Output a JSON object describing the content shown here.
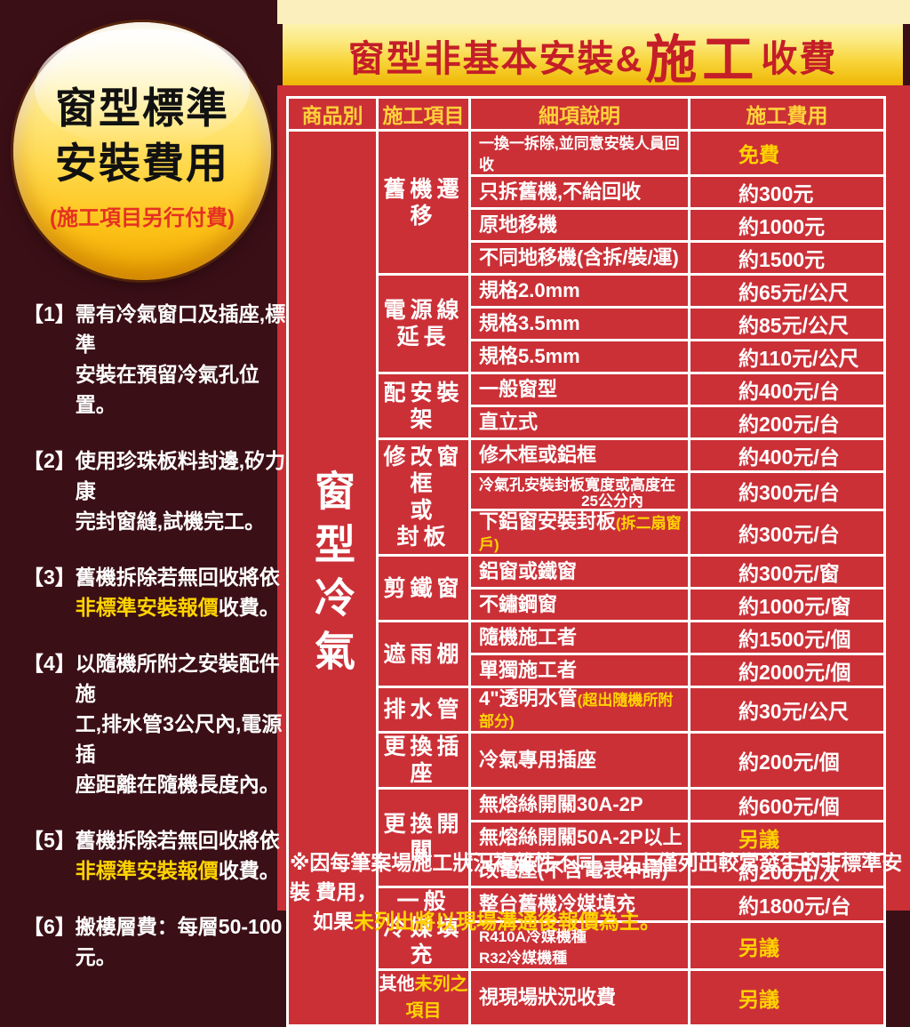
{
  "colors": {
    "background_maroon": "#3b0f16",
    "panel_red": "#cb3037",
    "highlight_yellow": "#ffd400",
    "header_yellow": "#ffd23a",
    "banner_text_red": "#c41e28",
    "badge_note_red": "#e53122"
  },
  "badge": {
    "line1": "窗型標準",
    "line2": "安裝費用",
    "note": "(施工項目另行付費)"
  },
  "notes": [
    {
      "num": "【1】",
      "parts": [
        {
          "t": "需有冷氣窗口及插座,標準"
        },
        {
          "br": true
        },
        {
          "t": "安裝在預留冷氣孔位置。"
        }
      ]
    },
    {
      "num": "【2】",
      "parts": [
        {
          "t": "使用珍珠板料封邊,矽力康"
        },
        {
          "br": true
        },
        {
          "t": "完封窗縫,試機完工。"
        }
      ]
    },
    {
      "num": "【3】",
      "parts": [
        {
          "t": "舊機拆除若無回收將依"
        },
        {
          "br": true
        },
        {
          "t": "非標準安裝報價",
          "y": true
        },
        {
          "t": "收費。"
        }
      ]
    },
    {
      "num": "【4】",
      "parts": [
        {
          "t": "以隨機所附之安裝配件施"
        },
        {
          "br": true
        },
        {
          "t": "工,排水管3公尺內,電源插"
        },
        {
          "br": true
        },
        {
          "t": "座距離在隨機長度內。"
        }
      ]
    },
    {
      "num": "【5】",
      "parts": [
        {
          "t": "舊機拆除若無回收將依"
        },
        {
          "br": true
        },
        {
          "t": "非標準安裝報價",
          "y": true
        },
        {
          "t": "收費。"
        }
      ]
    },
    {
      "num": "【6】",
      "parts": [
        {
          "t": "搬樓層費：每層50-100元。"
        }
      ]
    }
  ],
  "banner": {
    "left": "窗型非基本安裝&",
    "big": "施工",
    "right": "收費"
  },
  "table": {
    "headers": [
      "商品別",
      "施工項目",
      "細項說明",
      "施工費用"
    ],
    "product": "窗型冷氣",
    "sections": [
      {
        "label": [
          [
            {
              "t": "舊機遷移"
            }
          ]
        ],
        "rows": [
          {
            "detail": [
              {
                "t": "一換一拆除,並同意安裝人員回收",
                "sm": true
              }
            ],
            "fee": "免費",
            "hl": true
          },
          {
            "detail": [
              {
                "t": "只拆舊機,不給回收"
              }
            ],
            "fee": "約300元"
          },
          {
            "detail": [
              {
                "t": "原地移機"
              }
            ],
            "fee": "約1000元"
          },
          {
            "detail": [
              {
                "t": "不同地移機(含拆/裝/運)"
              }
            ],
            "fee": "約1500元"
          }
        ]
      },
      {
        "label": [
          [
            {
              "t": "電源線"
            }
          ],
          [
            {
              "t": "延長"
            }
          ]
        ],
        "rows": [
          {
            "detail": [
              {
                "t": "規格2.0mm"
              }
            ],
            "fee": "約65元/公尺"
          },
          {
            "detail": [
              {
                "t": "規格3.5mm"
              }
            ],
            "fee": "約85元/公尺"
          },
          {
            "detail": [
              {
                "t": "規格5.5mm"
              }
            ],
            "fee": "約110元/公尺"
          }
        ]
      },
      {
        "label": [
          [
            {
              "t": "配安裝架"
            }
          ]
        ],
        "rows": [
          {
            "detail": [
              {
                "t": "一般窗型"
              }
            ],
            "fee": "約400元/台"
          },
          {
            "detail": [
              {
                "t": "直立式"
              }
            ],
            "fee": "約200元/台"
          }
        ]
      },
      {
        "label": [
          [
            {
              "t": "修改窗框"
            }
          ],
          [
            {
              "t": "或"
            }
          ],
          [
            {
              "t": "封板"
            }
          ]
        ],
        "rows": [
          {
            "detail": [
              {
                "t": "修木框或鋁框"
              }
            ],
            "fee": "約400元/台"
          },
          {
            "detail": [
              {
                "t": "冷氣孔安裝封板寬度或高度在",
                "sm": true
              },
              {
                "t": "25公分內",
                "sm": true,
                "shift": true
              }
            ],
            "fee": "約300元/台"
          },
          {
            "detail": [
              {
                "t": "下鋁窗安裝封板"
              },
              {
                "t": "(拆二扇窗戶)",
                "y": true,
                "sm": true
              }
            ],
            "fee": "約300元/台"
          }
        ]
      },
      {
        "label": [
          [
            {
              "t": "剪鐵窗"
            }
          ]
        ],
        "rows": [
          {
            "detail": [
              {
                "t": "鋁窗或鐵窗"
              }
            ],
            "fee": "約300元/窗"
          },
          {
            "detail": [
              {
                "t": "不鏽鋼窗"
              }
            ],
            "fee": "約1000元/窗"
          }
        ]
      },
      {
        "label": [
          [
            {
              "t": "遮雨棚"
            }
          ]
        ],
        "rows": [
          {
            "detail": [
              {
                "t": "隨機施工者"
              }
            ],
            "fee": "約1500元/個"
          },
          {
            "detail": [
              {
                "t": "單獨施工者"
              }
            ],
            "fee": "約2000元/個"
          }
        ]
      },
      {
        "label": [
          [
            {
              "t": "排水管"
            }
          ]
        ],
        "rows": [
          {
            "detail": [
              {
                "t": "4\"透明水管"
              },
              {
                "t": "(超出隨機所附部分)",
                "y": true,
                "sm": true
              }
            ],
            "fee": "約30元/公尺"
          }
        ]
      },
      {
        "label": [
          [
            {
              "t": "更換插座"
            }
          ]
        ],
        "rows": [
          {
            "detail": [
              {
                "t": "冷氣專用插座"
              }
            ],
            "fee": "約200元/個"
          }
        ]
      },
      {
        "label": [
          [
            {
              "t": "更換開關"
            }
          ]
        ],
        "rows": [
          {
            "detail": [
              {
                "t": "無熔絲開關30A-2P"
              }
            ],
            "fee": "約600元/個"
          },
          {
            "detail": [
              {
                "t": "無熔絲開關50A-2P以上"
              }
            ],
            "fee": "另議",
            "hl": true
          },
          {
            "detail": [
              {
                "t": "改電壓(不含電表申請)"
              }
            ],
            "fee": "約200元/次"
          }
        ]
      },
      {
        "label": [
          [
            {
              "t": "一般"
            }
          ],
          [
            {
              "t": "冷媒填充"
            }
          ]
        ],
        "rows": [
          {
            "detail": [
              {
                "t": "整台舊機冷媒填充"
              }
            ],
            "fee": "約1800元/台"
          },
          {
            "detail": [
              {
                "t": "R410A冷媒機種",
                "sm": true
              },
              {
                "br": true
              },
              {
                "t": "R32冷媒機種",
                "sm": true
              }
            ],
            "fee": "另議",
            "hl": true
          }
        ]
      },
      {
        "label": [
          [
            {
              "t": "其他"
            },
            {
              "t": "未列之項目",
              "y": true
            }
          ]
        ],
        "cls": "sec-sm",
        "rows": [
          {
            "detail": [
              {
                "t": "視現場狀況收費"
              }
            ],
            "fee": "另議",
            "hl": true
          }
        ]
      }
    ]
  },
  "footer": {
    "line1": "※因每筆案場施工狀況複雜性不同，以上僅列出較常發生的非標準安裝 費用，",
    "line2_prefix": "如果",
    "line2_highlight": "未列出將以現場溝通後報價為主。"
  }
}
